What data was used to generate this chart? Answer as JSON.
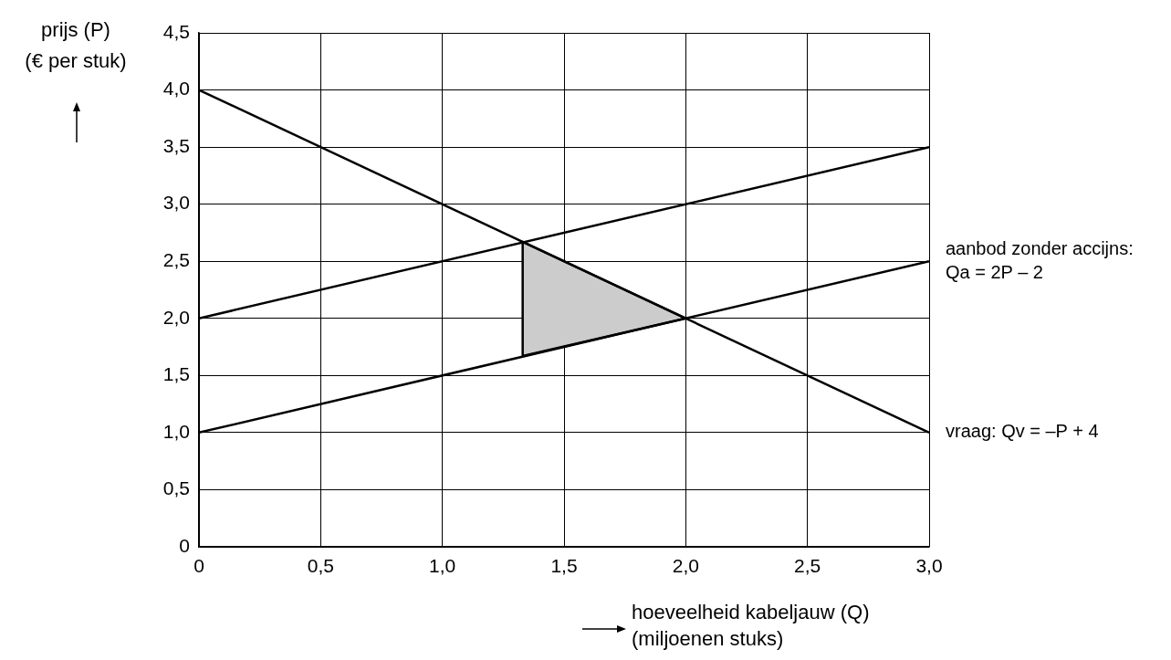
{
  "chart_data": {
    "type": "line",
    "xlabel": "hoeveelheid kabeljauw (Q)\n(miljoenen stuks)",
    "ylabel": "prijs (P)\n(€ per stuk)",
    "xlim": [
      0,
      3
    ],
    "ylim": [
      0,
      4.5
    ],
    "xticks": [
      0,
      {
        "value": 0.5,
        "label": "0,5"
      },
      {
        "value": 1,
        "label": "1,0"
      },
      {
        "value": 1.5,
        "label": "1,5"
      },
      {
        "value": 2,
        "label": "2,0"
      },
      {
        "value": 2.5,
        "label": "2,5"
      },
      {
        "value": 3,
        "label": "3,0"
      }
    ],
    "yticks": [
      0,
      {
        "value": 0.5,
        "label": "0,5"
      },
      {
        "value": 1,
        "label": "1,0"
      },
      {
        "value": 1.5,
        "label": "1,5"
      },
      {
        "value": 2,
        "label": "2,0"
      },
      {
        "value": 2.5,
        "label": "2,5"
      },
      {
        "value": 3,
        "label": "3,0"
      },
      {
        "value": 3.5,
        "label": "3,5"
      },
      {
        "value": 4,
        "label": "4,0"
      },
      {
        "value": 4.5,
        "label": "4,5"
      }
    ],
    "grid": true,
    "marker": "none",
    "series": [
      {
        "type": "area",
        "color": "#cccccc",
        "x": [
          1.33,
          1.33,
          2,
          1.33
        ],
        "values": [
          1.67,
          2.67,
          2,
          1.67
        ]
      },
      {
        "name": "vraag: Qv = –P + 4",
        "color": "#000000",
        "x": [
          0,
          3
        ],
        "values": [
          4,
          1
        ]
      },
      {
        "name": "aanbod zonder accijns: Qa = 2P – 2",
        "color": "#000000",
        "x": [
          0,
          3
        ],
        "values": [
          1,
          2.5
        ]
      },
      {
        "color": "#000000",
        "x": [
          0,
          3
        ],
        "values": [
          2,
          3.5
        ]
      }
    ]
  }
}
